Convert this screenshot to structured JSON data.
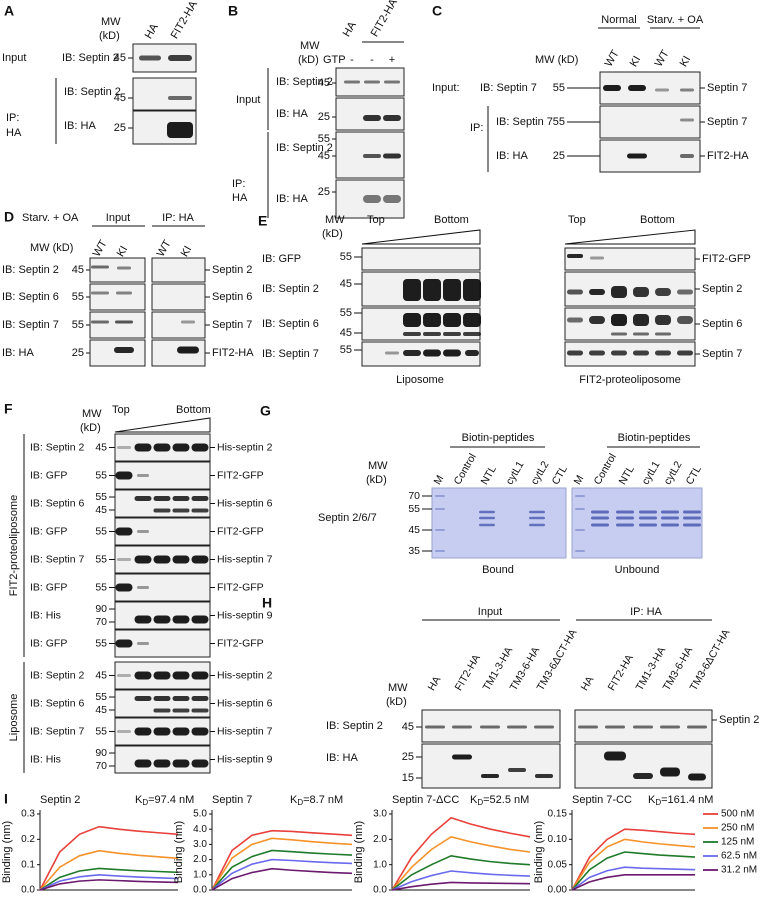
{
  "figure": {
    "A": {
      "letter": "A",
      "mw": "MW",
      "kd": "(kD)",
      "lanes": [
        "HA",
        "FIT2-HA"
      ],
      "input": "Input",
      "ip": "IP:",
      "ip_tag": "HA",
      "rows": [
        {
          "ib": "IB: Septin 2",
          "mw": [
            45
          ]
        },
        {
          "ib": "IB: Septin 2",
          "mw": [
            45
          ]
        },
        {
          "ib": "IB: HA",
          "mw": [
            25
          ]
        }
      ]
    },
    "B": {
      "letter": "B",
      "mw": "MW",
      "kd": "(kD)",
      "lanes": [
        "HA",
        "FIT2-HA"
      ],
      "gtp": "GTP",
      "gtp_signs": [
        "-",
        "-",
        "+"
      ],
      "input": "Input",
      "ip": "IP:",
      "ip_tag": "HA",
      "rows": [
        {
          "ib": "IB: Septin 2",
          "mw": [
            45
          ]
        },
        {
          "ib": "IB: HA",
          "mw": [
            25
          ]
        },
        {
          "ib": "IB: Septin 2",
          "mw": [
            55,
            45
          ]
        },
        {
          "ib": "IB: HA",
          "mw": [
            25
          ]
        }
      ]
    },
    "C": {
      "letter": "C",
      "groups": [
        "Normal",
        "Starv. + OA"
      ],
      "mw": "MW (kD)",
      "lanes": [
        "WT",
        "KI",
        "WT",
        "KI"
      ],
      "input": "Input:",
      "ip": "IP:",
      "rows": [
        {
          "ib": "IB: Septin 7",
          "mw": [
            55
          ],
          "band": "Septin 7"
        },
        {
          "ib": "IB: Septin 7",
          "mw": [
            55
          ],
          "band": "Septin 7"
        },
        {
          "ib": "IB: HA",
          "mw": [
            25
          ],
          "band": "FIT2-HA"
        }
      ]
    },
    "D": {
      "letter": "D",
      "condition": "Starv. + OA",
      "groups": [
        "Input",
        "IP: HA"
      ],
      "mw": "MW (kD)",
      "lanes": [
        "WT",
        "KI",
        "WT",
        "KI"
      ],
      "rows": [
        {
          "ib": "IB: Septin 2",
          "mw": [
            45
          ],
          "band": "Septin 2"
        },
        {
          "ib": "IB: Septin 6",
          "mw": [
            55
          ],
          "band": "Septin 6"
        },
        {
          "ib": "IB: Septin 7",
          "mw": [
            55
          ],
          "band": "Septin 7"
        },
        {
          "ib": "IB: HA",
          "mw": [
            25
          ],
          "band": "FIT2-HA"
        }
      ]
    },
    "E": {
      "letter": "E",
      "mw": "MW",
      "kd": "(kD)",
      "gradient": [
        "Top",
        "Bottom",
        "Top",
        "Bottom"
      ],
      "rows": [
        {
          "ib": "IB: GFP",
          "mw": [
            55
          ],
          "band": "FIT2-GFP"
        },
        {
          "ib": "IB: Septin 2",
          "mw": [
            45
          ],
          "band": "Septin 2"
        },
        {
          "ib": "IB: Septin 6",
          "mw": [
            55,
            45
          ],
          "band": "Septin 6"
        },
        {
          "ib": "IB: Septin 7",
          "mw": [
            55
          ],
          "band": "Septin 7"
        }
      ],
      "samples": [
        "Liposome",
        "FIT2-proteoliposome"
      ]
    },
    "F": {
      "letter": "F",
      "mw": "MW",
      "kd": "(kD)",
      "gradient": [
        "Top",
        "Bottom"
      ],
      "groups": [
        {
          "name": "FIT2-proteoliposome",
          "rows": [
            {
              "ib": "IB: Septin 2",
              "mw": [
                45
              ],
              "band": "His-septin 2"
            },
            {
              "ib": "IB: GFP",
              "mw": [
                55
              ],
              "band": "FIT2-GFP"
            },
            {
              "ib": "IB: Septin 6",
              "mw": [
                55,
                45
              ],
              "band": "His-septin 6"
            },
            {
              "ib": "IB: GFP",
              "mw": [
                55
              ],
              "band": "FIT2-GFP"
            },
            {
              "ib": "IB: Septin 7",
              "mw": [
                55
              ],
              "band": "His-septin 7"
            },
            {
              "ib": "IB: GFP",
              "mw": [
                55
              ],
              "band": "FIT2-GFP"
            },
            {
              "ib": "IB: His",
              "mw": [
                90,
                70
              ],
              "band": "His-septin 9"
            },
            {
              "ib": "IB: GFP",
              "mw": [
                55
              ],
              "band": "FIT2-GFP"
            }
          ]
        },
        {
          "name": "Liposome",
          "rows": [
            {
              "ib": "IB: Septin 2",
              "mw": [
                45
              ],
              "band": "His-septin 2"
            },
            {
              "ib": "IB: Septin 6",
              "mw": [
                55,
                45
              ],
              "band": "His-septin 6"
            },
            {
              "ib": "IB: Septin 7",
              "mw": [
                55
              ],
              "band": "His-septin 7"
            },
            {
              "ib": "IB: His",
              "mw": [
                90,
                70
              ],
              "band": "His-septin 9"
            }
          ]
        }
      ]
    },
    "G": {
      "letter": "G",
      "peptides": [
        "Biotin-peptides",
        "Biotin-peptides"
      ],
      "mw": "MW",
      "kd": "(kD)",
      "lanes": [
        "M",
        "Control",
        "NTL",
        "cytL1",
        "cytL2",
        "CTL",
        "M",
        "Control",
        "NTL",
        "cytL1",
        "cytL2",
        "CTL"
      ],
      "mw_marks": [
        70,
        55,
        45,
        35
      ],
      "protein": "Septin 2/6/7",
      "fractions": [
        "Bound",
        "Unbound"
      ]
    },
    "H": {
      "letter": "H",
      "groups": [
        "Input",
        "IP: HA"
      ],
      "lanes": [
        "HA",
        "FIT2-HA",
        "TM1-3-HA",
        "TM3-6-HA",
        "TM3-6ΔCT-HA",
        "HA",
        "FIT2-HA",
        "TM1-3-HA",
        "TM3-6-HA",
        "TM3-6ΔCT-HA"
      ],
      "mw": "MW",
      "kd": "(kD)",
      "rows": [
        {
          "ib": "IB: Septin 2",
          "mw": [
            45
          ],
          "band": "Septin 2"
        },
        {
          "ib": "IB: HA",
          "mw": [
            25,
            15
          ]
        }
      ]
    },
    "I": {
      "letter": "I"
    }
  },
  "chart_data": [
    {
      "type": "line",
      "title": "Septin 2",
      "kd": {
        "symbol": "K",
        "subscript": "D",
        "text": "=97.4 nM"
      },
      "y_label": "Binding (nm)",
      "x": [
        0,
        1,
        2,
        3,
        4,
        5,
        6,
        7
      ],
      "xlim": [
        0,
        7
      ],
      "ylim": [
        0,
        0.3
      ],
      "yticks": [
        {
          "value": 0,
          "label": "0.0"
        },
        0.1,
        0.2,
        0.3
      ],
      "series": [
        {
          "color": "#e8403a",
          "values": [
            0,
            0.15,
            0.22,
            0.25,
            0.24,
            0.232,
            0.226,
            0.22
          ]
        },
        {
          "color": "#f5922a",
          "values": [
            0,
            0.09,
            0.135,
            0.155,
            0.145,
            0.137,
            0.131,
            0.125
          ]
        },
        {
          "color": "#1f7a2a",
          "values": [
            0,
            0.05,
            0.075,
            0.085,
            0.08,
            0.076,
            0.073,
            0.07
          ]
        },
        {
          "color": "#6a6aee",
          "values": [
            0,
            0.035,
            0.052,
            0.06,
            0.055,
            0.051,
            0.048,
            0.045
          ]
        },
        {
          "color": "#6b1a6e",
          "values": [
            0,
            0.024,
            0.035,
            0.04,
            0.037,
            0.034,
            0.032,
            0.03
          ]
        }
      ]
    },
    {
      "type": "line",
      "title": "Septin 7",
      "kd": {
        "symbol": "K",
        "subscript": "D",
        "text": "=8.7 nM"
      },
      "y_label": "Binding (nm)",
      "x": [
        0,
        1,
        2,
        3,
        4,
        5,
        6,
        7
      ],
      "xlim": [
        0,
        7
      ],
      "ylim": [
        0,
        5
      ],
      "yticks": [
        {
          "value": 0,
          "label": "0.0"
        },
        {
          "value": 1,
          "label": "1.0"
        },
        {
          "value": 2,
          "label": "2.0"
        },
        {
          "value": 3,
          "label": "3.0"
        },
        {
          "value": 4,
          "label": "4.0"
        },
        {
          "value": 5,
          "label": "5.0"
        }
      ],
      "series": [
        {
          "color": "#e8403a",
          "values": [
            0,
            2.6,
            3.6,
            3.9,
            3.85,
            3.76,
            3.68,
            3.6
          ]
        },
        {
          "color": "#f5922a",
          "values": [
            0,
            2.1,
            3.0,
            3.4,
            3.3,
            3.18,
            3.08,
            3.0
          ]
        },
        {
          "color": "#1f7a2a",
          "values": [
            0,
            1.5,
            2.2,
            2.6,
            2.52,
            2.43,
            2.36,
            2.3
          ]
        },
        {
          "color": "#6a6aee",
          "values": [
            0,
            1.1,
            1.7,
            2.0,
            1.94,
            1.86,
            1.8,
            1.75
          ]
        },
        {
          "color": "#6b1a6e",
          "values": [
            0,
            0.75,
            1.15,
            1.4,
            1.3,
            1.22,
            1.15,
            1.1
          ]
        }
      ]
    },
    {
      "type": "line",
      "title": "Septin 7-ΔCC",
      "kd": {
        "symbol": "K",
        "subscript": "D",
        "text": "=52.5 nM"
      },
      "y_label": "Binding (nm)",
      "x": [
        0,
        1,
        2,
        3,
        4,
        5,
        6,
        7
      ],
      "xlim": [
        0,
        7
      ],
      "ylim": [
        0,
        3
      ],
      "yticks": [
        {
          "value": 0,
          "label": "0.0"
        },
        {
          "value": 1,
          "label": "1.0"
        },
        {
          "value": 2,
          "label": "2.0"
        },
        {
          "value": 3,
          "label": "3.0"
        }
      ],
      "series": [
        {
          "color": "#e8403a",
          "values": [
            0,
            1.3,
            2.2,
            2.85,
            2.6,
            2.4,
            2.24,
            2.1
          ]
        },
        {
          "color": "#f5922a",
          "values": [
            0,
            0.9,
            1.6,
            2.1,
            1.9,
            1.74,
            1.6,
            1.5
          ]
        },
        {
          "color": "#1f7a2a",
          "values": [
            0,
            0.6,
            1.0,
            1.35,
            1.22,
            1.12,
            1.05,
            1.0
          ]
        },
        {
          "color": "#6a6aee",
          "values": [
            0,
            0.33,
            0.57,
            0.75,
            0.68,
            0.62,
            0.58,
            0.55
          ]
        },
        {
          "color": "#6b1a6e",
          "values": [
            0,
            0.13,
            0.23,
            0.3,
            0.28,
            0.27,
            0.26,
            0.25
          ]
        }
      ]
    },
    {
      "type": "line",
      "title": "Septin 7-CC",
      "kd": {
        "symbol": "K",
        "subscript": "D",
        "text": "=161.4 nM"
      },
      "y_label": "Binding (nm)",
      "x": [
        0,
        1,
        2,
        3,
        4,
        5,
        6,
        7
      ],
      "xlim": [
        0,
        7
      ],
      "ylim": [
        0,
        0.15
      ],
      "yticks": [
        {
          "value": 0,
          "label": "0.00"
        },
        0.05,
        {
          "value": 0.1,
          "label": "0.10"
        },
        0.15
      ],
      "series": [
        {
          "name": "500 nM",
          "color": "#e8403a",
          "values": [
            0,
            0.065,
            0.1,
            0.12,
            0.118,
            0.115,
            0.112,
            0.11
          ]
        },
        {
          "name": "250 nM",
          "color": "#f5922a",
          "values": [
            0,
            0.055,
            0.085,
            0.1,
            0.095,
            0.091,
            0.088,
            0.085
          ]
        },
        {
          "name": "125 nM",
          "color": "#1f7a2a",
          "values": [
            0,
            0.04,
            0.063,
            0.075,
            0.072,
            0.069,
            0.067,
            0.065
          ]
        },
        {
          "name": "62.5 nM",
          "color": "#6a6aee",
          "values": [
            0,
            0.025,
            0.038,
            0.045,
            0.043,
            0.042,
            0.041,
            0.04
          ]
        },
        {
          "name": "31.2 nM",
          "color": "#6b1a6e",
          "values": [
            0,
            0.016,
            0.025,
            0.03,
            0.03,
            0.03,
            0.03,
            0.03
          ]
        }
      ]
    }
  ]
}
